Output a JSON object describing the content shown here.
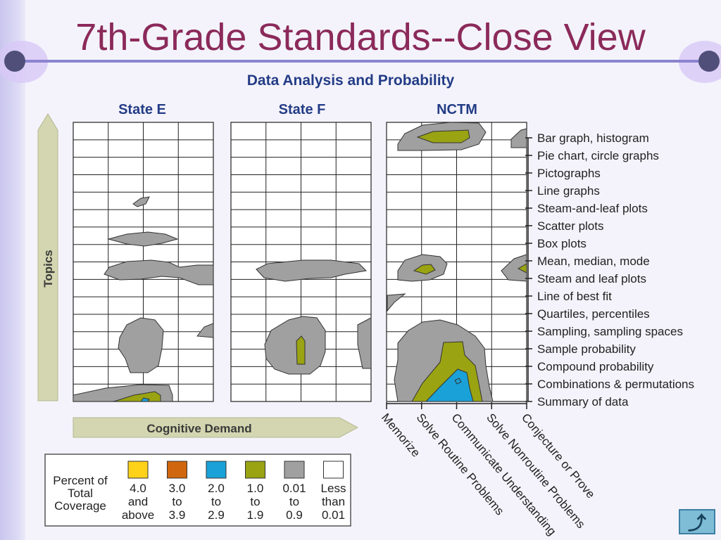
{
  "slide": {
    "title": "7th-Grade Standards--Close View",
    "subtitle": "Data Analysis and Probability"
  },
  "panels": [
    "State E",
    "State F",
    "NCTM"
  ],
  "chart_data": {
    "type": "heatmap",
    "title": "Data Analysis and Probability",
    "ylabel": "Topics",
    "xlabel": "Cognitive Demand",
    "y_categories": [
      "Bar graph, histogram",
      "Pie chart, circle graphs",
      "Pictographs",
      "Line graphs",
      "Steam-and-leaf plots",
      "Scatter plots",
      "Box plots",
      "Mean, median, mode",
      "Steam and leaf plots",
      "Line of best fit",
      "Quartiles, percentiles",
      "Sampling, sampling spaces",
      "Sample probability",
      "Compound probability",
      "Combinations & permutations",
      "Summary of data"
    ],
    "x_categories": [
      "Memorize",
      "Solve Routine Problems",
      "Communicate Understanding",
      "Solve Nonroutine Problems",
      "Conjecture or Prove"
    ],
    "legend": {
      "title_lines": [
        "Percent of",
        "Total",
        "Coverage"
      ],
      "bins": [
        {
          "lines": [
            "4.0",
            "and",
            "above"
          ],
          "color": "#ffd21a"
        },
        {
          "lines": [
            "3.0",
            "to",
            "3.9"
          ],
          "color": "#d0670e"
        },
        {
          "lines": [
            "2.0",
            "to",
            "2.9"
          ],
          "color": "#1aa1d8"
        },
        {
          "lines": [
            "1.0",
            "to",
            "1.9"
          ],
          "color": "#9aa312"
        },
        {
          "lines": [
            "0.01",
            "to",
            "0.9"
          ],
          "color": "#a0a0a0"
        },
        {
          "lines": [
            "Less",
            "than",
            "0.01"
          ],
          "color": "#ffffff"
        }
      ]
    }
  },
  "colors": {
    "gray": "#a0a0a0",
    "olive": "#9aa312",
    "blue": "#1aa1d8",
    "title": "#8b2a5a",
    "heading": "#233c86"
  },
  "nav": {
    "home_icon": "return-arrow-icon"
  }
}
